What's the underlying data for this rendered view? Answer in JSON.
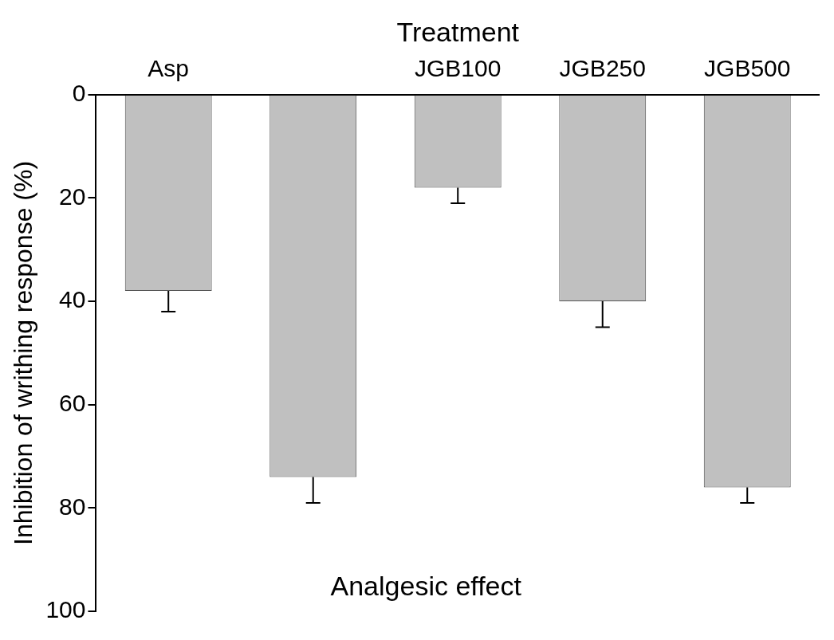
{
  "chart_data": {
    "type": "bar",
    "xlabel": "Treatment",
    "ylabel": "Inhibition of writhing response (%)",
    "annotations": [
      "Analgesic effect"
    ],
    "categories": [
      "Asp",
      null,
      "JGB100",
      "JGB250",
      "JGB500"
    ],
    "values": [
      38,
      74,
      18,
      40,
      76
    ],
    "errors": [
      4,
      5,
      3,
      5,
      3
    ],
    "color": "#c0c0c0",
    "ylim": [
      100,
      0
    ],
    "yticks": [
      0,
      20,
      40,
      60,
      80,
      100
    ],
    "grid": false,
    "legend": false
  }
}
